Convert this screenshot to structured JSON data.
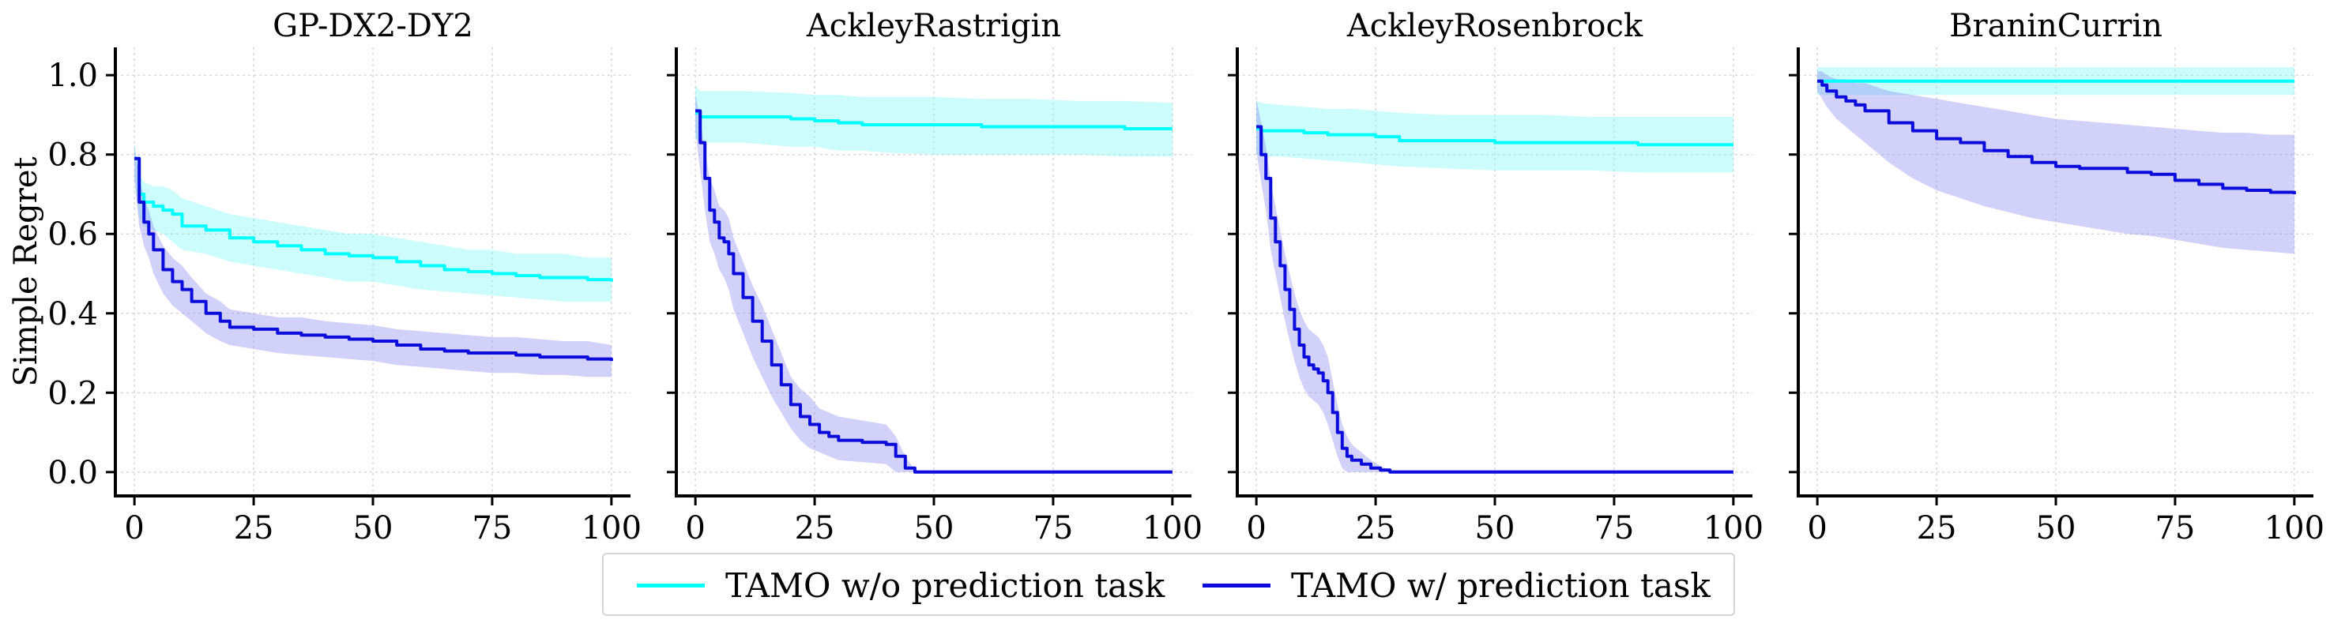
{
  "chart_data": {
    "type": "line",
    "ylabel": "Simple Regret",
    "xlim": [
      -4,
      104
    ],
    "ylim": [
      -0.06,
      1.07
    ],
    "xticks": [
      0,
      25,
      50,
      75,
      100
    ],
    "yticks": [
      0.0,
      0.2,
      0.4,
      0.6,
      0.8,
      1.0
    ],
    "xtick_labels": [
      "0",
      "25",
      "50",
      "75",
      "100"
    ],
    "ytick_labels": [
      "0.0",
      "0.2",
      "0.4",
      "0.6",
      "0.8",
      "1.0"
    ],
    "grid": true,
    "legend_position": "bottom-center",
    "colors": {
      "wo": "#00ffff",
      "w": "#0b0bdc",
      "wo_band": "#7ff7f7",
      "w_band": "#8c8cf0"
    },
    "legend": [
      "TAMO w/o prediction task",
      "TAMO w/ prediction task"
    ],
    "panels": [
      {
        "title": "GP-DX2-DY2",
        "series": [
          {
            "name": "TAMO w/o prediction task",
            "x": [
              0,
              1,
              2,
              4,
              6,
              8,
              10,
              15,
              20,
              25,
              30,
              35,
              40,
              45,
              50,
              55,
              60,
              65,
              70,
              75,
              80,
              85,
              90,
              95,
              100
            ],
            "y": [
              0.79,
              0.7,
              0.68,
              0.67,
              0.66,
              0.65,
              0.62,
              0.61,
              0.59,
              0.58,
              0.57,
              0.56,
              0.55,
              0.545,
              0.54,
              0.53,
              0.52,
              0.51,
              0.505,
              0.5,
              0.495,
              0.49,
              0.49,
              0.485,
              0.48
            ],
            "lower": [
              0.74,
              0.64,
              0.62,
              0.61,
              0.6,
              0.58,
              0.56,
              0.55,
              0.53,
              0.52,
              0.51,
              0.5,
              0.49,
              0.48,
              0.48,
              0.47,
              0.46,
              0.455,
              0.45,
              0.445,
              0.44,
              0.435,
              0.43,
              0.43,
              0.43
            ],
            "upper": [
              0.83,
              0.75,
              0.73,
              0.72,
              0.72,
              0.71,
              0.69,
              0.67,
              0.65,
              0.64,
              0.63,
              0.62,
              0.61,
              0.6,
              0.6,
              0.59,
              0.58,
              0.57,
              0.56,
              0.56,
              0.55,
              0.55,
              0.55,
              0.54,
              0.54
            ]
          },
          {
            "name": "TAMO w/ prediction task",
            "x": [
              0,
              1,
              2,
              3,
              4,
              6,
              8,
              10,
              12,
              15,
              18,
              20,
              25,
              30,
              35,
              40,
              45,
              50,
              55,
              60,
              65,
              70,
              75,
              80,
              85,
              90,
              95,
              100
            ],
            "y": [
              0.79,
              0.68,
              0.63,
              0.6,
              0.56,
              0.51,
              0.48,
              0.46,
              0.43,
              0.4,
              0.38,
              0.365,
              0.36,
              0.35,
              0.345,
              0.34,
              0.335,
              0.33,
              0.32,
              0.31,
              0.305,
              0.3,
              0.3,
              0.295,
              0.29,
              0.29,
              0.285,
              0.28
            ],
            "lower": [
              0.74,
              0.62,
              0.57,
              0.54,
              0.5,
              0.45,
              0.42,
              0.4,
              0.38,
              0.35,
              0.33,
              0.32,
              0.31,
              0.3,
              0.295,
              0.29,
              0.285,
              0.28,
              0.27,
              0.265,
              0.26,
              0.255,
              0.25,
              0.25,
              0.245,
              0.245,
              0.24,
              0.24
            ],
            "upper": [
              0.82,
              0.74,
              0.69,
              0.66,
              0.62,
              0.57,
              0.54,
              0.52,
              0.49,
              0.45,
              0.43,
              0.41,
              0.4,
              0.39,
              0.39,
              0.38,
              0.375,
              0.37,
              0.36,
              0.355,
              0.35,
              0.345,
              0.34,
              0.34,
              0.335,
              0.33,
              0.33,
              0.32
            ]
          }
        ]
      },
      {
        "title": "AckleyRastrigin",
        "series": [
          {
            "name": "TAMO w/o prediction task",
            "x": [
              0,
              1,
              5,
              10,
              20,
              25,
              30,
              35,
              40,
              50,
              60,
              70,
              80,
              90,
              100
            ],
            "y": [
              0.905,
              0.895,
              0.895,
              0.895,
              0.89,
              0.885,
              0.88,
              0.875,
              0.875,
              0.875,
              0.87,
              0.87,
              0.87,
              0.865,
              0.865
            ],
            "lower": [
              0.84,
              0.83,
              0.83,
              0.83,
              0.82,
              0.82,
              0.81,
              0.81,
              0.805,
              0.8,
              0.8,
              0.8,
              0.8,
              0.795,
              0.795
            ],
            "upper": [
              0.975,
              0.96,
              0.96,
              0.96,
              0.955,
              0.95,
              0.95,
              0.945,
              0.945,
              0.945,
              0.94,
              0.94,
              0.935,
              0.935,
              0.93
            ]
          },
          {
            "name": "TAMO w/ prediction task",
            "x": [
              0,
              1,
              2,
              3,
              4,
              5,
              6,
              7,
              8,
              10,
              12,
              14,
              16,
              18,
              20,
              22,
              24,
              26,
              28,
              30,
              35,
              40,
              42,
              44,
              46,
              50,
              60,
              70,
              80,
              90,
              100
            ],
            "y": [
              0.91,
              0.83,
              0.74,
              0.66,
              0.63,
              0.59,
              0.58,
              0.55,
              0.5,
              0.44,
              0.38,
              0.33,
              0.27,
              0.22,
              0.17,
              0.14,
              0.12,
              0.1,
              0.09,
              0.08,
              0.075,
              0.07,
              0.04,
              0.01,
              0.0,
              0.0,
              0.0,
              0.0,
              0.0,
              0.0,
              0.0
            ],
            "lower": [
              0.86,
              0.76,
              0.66,
              0.58,
              0.55,
              0.51,
              0.49,
              0.46,
              0.41,
              0.35,
              0.29,
              0.24,
              0.19,
              0.15,
              0.11,
              0.08,
              0.06,
              0.05,
              0.04,
              0.03,
              0.025,
              0.02,
              0.0,
              0.0,
              0.0,
              0.0,
              0.0,
              0.0,
              0.0,
              0.0,
              0.0
            ],
            "upper": [
              0.95,
              0.89,
              0.81,
              0.74,
              0.71,
              0.67,
              0.66,
              0.64,
              0.59,
              0.53,
              0.47,
              0.42,
              0.36,
              0.3,
              0.24,
              0.21,
              0.19,
              0.16,
              0.15,
              0.14,
              0.13,
              0.12,
              0.09,
              0.04,
              0.005,
              0.005,
              0.005,
              0.005,
              0.005,
              0.005,
              0.005
            ]
          }
        ]
      },
      {
        "title": "AckleyRosenbrock",
        "series": [
          {
            "name": "TAMO w/o prediction task",
            "x": [
              0,
              1,
              5,
              10,
              15,
              20,
              25,
              30,
              40,
              50,
              60,
              70,
              80,
              90,
              100
            ],
            "y": [
              0.865,
              0.86,
              0.86,
              0.855,
              0.85,
              0.85,
              0.845,
              0.835,
              0.835,
              0.83,
              0.83,
              0.83,
              0.825,
              0.825,
              0.825
            ],
            "lower": [
              0.8,
              0.795,
              0.795,
              0.79,
              0.785,
              0.78,
              0.775,
              0.77,
              0.765,
              0.76,
              0.76,
              0.76,
              0.755,
              0.755,
              0.755
            ],
            "upper": [
              0.935,
              0.93,
              0.925,
              0.92,
              0.915,
              0.915,
              0.91,
              0.905,
              0.9,
              0.9,
              0.9,
              0.895,
              0.895,
              0.895,
              0.895
            ]
          },
          {
            "name": "TAMO w/ prediction task",
            "x": [
              0,
              1,
              2,
              3,
              4,
              5,
              6,
              7,
              8,
              9,
              10,
              11,
              12,
              13,
              14,
              15,
              16,
              17,
              18,
              19,
              20,
              22,
              24,
              26,
              28,
              30,
              40,
              50,
              60,
              70,
              80,
              90,
              100
            ],
            "y": [
              0.87,
              0.8,
              0.74,
              0.64,
              0.58,
              0.52,
              0.46,
              0.41,
              0.36,
              0.32,
              0.29,
              0.27,
              0.26,
              0.25,
              0.23,
              0.2,
              0.15,
              0.1,
              0.06,
              0.04,
              0.03,
              0.02,
              0.01,
              0.005,
              0.0,
              0.0,
              0.0,
              0.0,
              0.0,
              0.0,
              0.0,
              0.0,
              0.0
            ],
            "lower": [
              0.81,
              0.73,
              0.66,
              0.56,
              0.5,
              0.44,
              0.38,
              0.33,
              0.28,
              0.24,
              0.21,
              0.19,
              0.18,
              0.17,
              0.15,
              0.12,
              0.08,
              0.04,
              0.01,
              0.0,
              0.0,
              0.0,
              0.0,
              0.0,
              0.0,
              0.0,
              0.0,
              0.0,
              0.0,
              0.0,
              0.0,
              0.0,
              0.0
            ],
            "upper": [
              0.94,
              0.88,
              0.82,
              0.73,
              0.67,
              0.61,
              0.55,
              0.5,
              0.45,
              0.41,
              0.38,
              0.36,
              0.35,
              0.34,
              0.32,
              0.29,
              0.23,
              0.17,
              0.12,
              0.09,
              0.07,
              0.05,
              0.03,
              0.015,
              0.005,
              0.005,
              0.005,
              0.005,
              0.005,
              0.005,
              0.005,
              0.005,
              0.005
            ]
          }
        ]
      },
      {
        "title": "BraninCurrin",
        "series": [
          {
            "name": "TAMO w/o prediction task",
            "x": [
              0,
              10,
              20,
              30,
              40,
              50,
              60,
              70,
              80,
              90,
              100
            ],
            "y": [
              0.985,
              0.985,
              0.985,
              0.985,
              0.985,
              0.985,
              0.985,
              0.985,
              0.985,
              0.985,
              0.985
            ],
            "lower": [
              0.95,
              0.95,
              0.95,
              0.95,
              0.95,
              0.95,
              0.95,
              0.95,
              0.95,
              0.95,
              0.95
            ],
            "upper": [
              1.02,
              1.02,
              1.02,
              1.02,
              1.02,
              1.02,
              1.02,
              1.02,
              1.02,
              1.02,
              1.02
            ]
          },
          {
            "name": "TAMO w/ prediction task",
            "x": [
              0,
              1,
              2,
              4,
              6,
              8,
              10,
              15,
              20,
              25,
              30,
              35,
              40,
              45,
              50,
              55,
              60,
              65,
              70,
              75,
              80,
              85,
              90,
              95,
              100
            ],
            "y": [
              0.985,
              0.975,
              0.96,
              0.945,
              0.935,
              0.925,
              0.91,
              0.88,
              0.86,
              0.84,
              0.83,
              0.81,
              0.795,
              0.78,
              0.77,
              0.765,
              0.765,
              0.755,
              0.75,
              0.735,
              0.725,
              0.715,
              0.71,
              0.705,
              0.7
            ],
            "lower": [
              0.96,
              0.94,
              0.92,
              0.89,
              0.87,
              0.85,
              0.83,
              0.78,
              0.74,
              0.71,
              0.69,
              0.67,
              0.655,
              0.64,
              0.63,
              0.62,
              0.61,
              0.6,
              0.595,
              0.585,
              0.575,
              0.565,
              0.56,
              0.555,
              0.55
            ],
            "upper": [
              1.01,
              1.01,
              1.0,
              0.99,
              0.99,
              0.98,
              0.98,
              0.96,
              0.95,
              0.94,
              0.93,
              0.92,
              0.91,
              0.9,
              0.89,
              0.885,
              0.88,
              0.875,
              0.87,
              0.865,
              0.86,
              0.855,
              0.855,
              0.85,
              0.85
            ]
          }
        ]
      }
    ]
  }
}
